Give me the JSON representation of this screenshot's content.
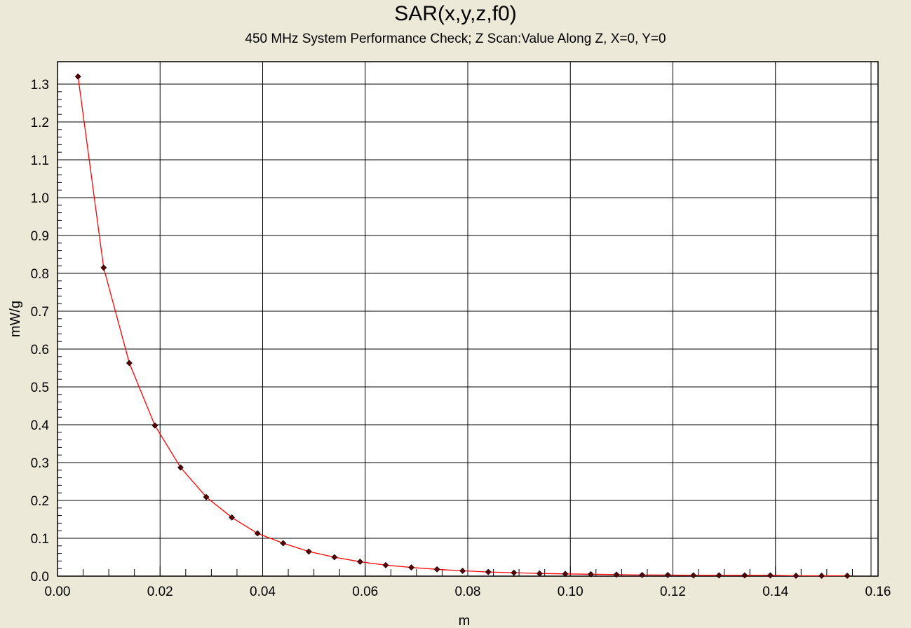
{
  "chart_data": {
    "type": "line",
    "title": "SAR(x,y,z,f0)",
    "subtitle": "450 MHz System Performance Check; Z Scan:Value Along Z, X=0, Y=0",
    "xlabel": "m",
    "ylabel": "mW/g",
    "xlim": [
      0.0,
      0.16
    ],
    "ylim": [
      0.0,
      1.3
    ],
    "grid": true,
    "x_ticks": [
      "0.00",
      "0.02",
      "0.04",
      "0.06",
      "0.08",
      "0.10",
      "0.12",
      "0.14",
      "0.16"
    ],
    "y_ticks": [
      "0.0",
      "0.1",
      "0.2",
      "0.3",
      "0.4",
      "0.5",
      "0.6",
      "0.7",
      "0.8",
      "0.9",
      "1.0",
      "1.1",
      "1.2",
      "1.3"
    ],
    "series": [
      {
        "color": "#FF0000",
        "marker_color": "#5A0000",
        "x": [
          0.004,
          0.009,
          0.014,
          0.019,
          0.024,
          0.029,
          0.034,
          0.039,
          0.044,
          0.049,
          0.054,
          0.059,
          0.064,
          0.069,
          0.074,
          0.079,
          0.084,
          0.089,
          0.094,
          0.099,
          0.104,
          0.109,
          0.114,
          0.119,
          0.124,
          0.129,
          0.134,
          0.139,
          0.144,
          0.149,
          0.154
        ],
        "y": [
          1.32,
          0.815,
          0.563,
          0.398,
          0.287,
          0.209,
          0.155,
          0.113,
          0.087,
          0.065,
          0.05,
          0.038,
          0.029,
          0.023,
          0.018,
          0.014,
          0.011,
          0.009,
          0.007,
          0.006,
          0.005,
          0.004,
          0.003,
          0.003,
          0.002,
          0.002,
          0.002,
          0.002,
          0.001,
          0.001,
          0.001
        ]
      }
    ]
  }
}
